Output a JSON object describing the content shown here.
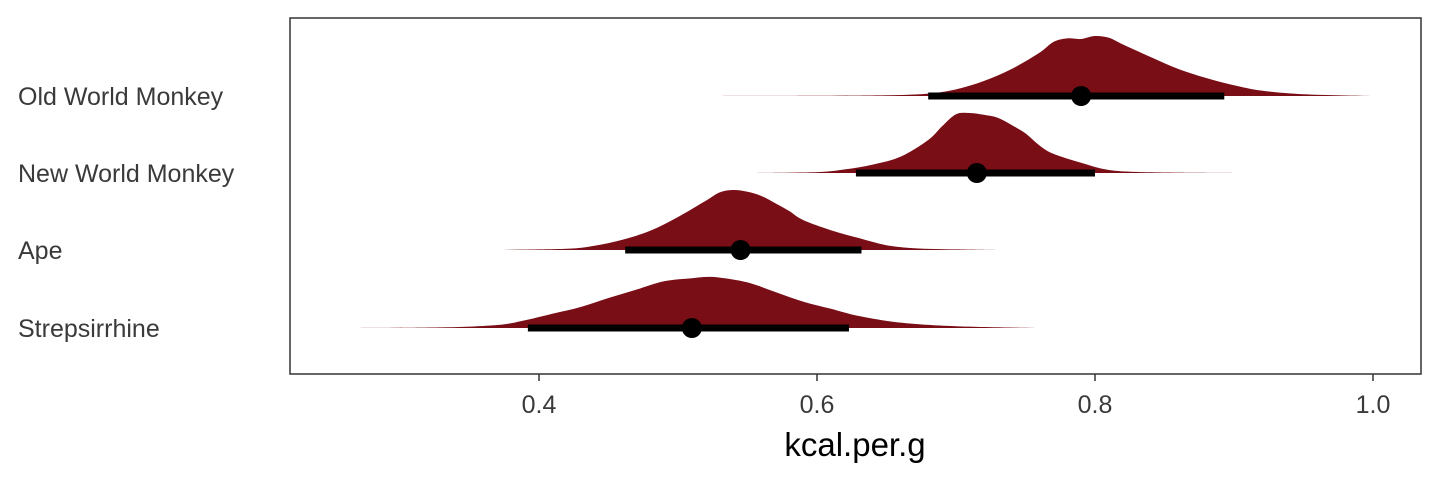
{
  "chart_data": {
    "type": "halfeye",
    "title": "",
    "xlabel": "kcal.per.g",
    "ylabel": "",
    "xlim": [
      0.22,
      1.035
    ],
    "x_ticks": [
      0.4,
      0.6,
      0.8,
      1.0
    ],
    "x_tick_labels": [
      "0.4",
      "0.6",
      "0.8",
      "1.0"
    ],
    "fill_color": "#7a0e17",
    "point_color": "#000000",
    "categories": [
      "Old World Monkey",
      "New World Monkey",
      "Ape",
      "Strepsirrhine"
    ],
    "series": [
      {
        "name": "Old World Monkey",
        "point": 0.79,
        "interval": [
          0.68,
          0.893
        ],
        "density": [
          [
            0.525,
            0
          ],
          [
            0.6,
            0.003
          ],
          [
            0.65,
            0.012
          ],
          [
            0.68,
            0.04
          ],
          [
            0.7,
            0.11
          ],
          [
            0.72,
            0.25
          ],
          [
            0.74,
            0.45
          ],
          [
            0.76,
            0.72
          ],
          [
            0.77,
            0.9
          ],
          [
            0.78,
            0.96
          ],
          [
            0.79,
            0.95
          ],
          [
            0.8,
            1.0
          ],
          [
            0.81,
            0.97
          ],
          [
            0.82,
            0.86
          ],
          [
            0.84,
            0.65
          ],
          [
            0.86,
            0.45
          ],
          [
            0.88,
            0.3
          ],
          [
            0.9,
            0.18
          ],
          [
            0.92,
            0.09
          ],
          [
            0.95,
            0.03
          ],
          [
            1.0,
            0
          ]
        ]
      },
      {
        "name": "New World Monkey",
        "point": 0.715,
        "interval": [
          0.628,
          0.8
        ],
        "density": [
          [
            0.555,
            0
          ],
          [
            0.6,
            0.015
          ],
          [
            0.62,
            0.06
          ],
          [
            0.64,
            0.14
          ],
          [
            0.66,
            0.27
          ],
          [
            0.68,
            0.55
          ],
          [
            0.69,
            0.78
          ],
          [
            0.7,
            0.98
          ],
          [
            0.71,
            1.0
          ],
          [
            0.72,
            0.97
          ],
          [
            0.73,
            0.92
          ],
          [
            0.74,
            0.8
          ],
          [
            0.75,
            0.66
          ],
          [
            0.76,
            0.46
          ],
          [
            0.77,
            0.32
          ],
          [
            0.79,
            0.17
          ],
          [
            0.81,
            0.05
          ],
          [
            0.84,
            0.012
          ],
          [
            0.9,
            0
          ]
        ]
      },
      {
        "name": "Ape",
        "point": 0.545,
        "interval": [
          0.462,
          0.632
        ],
        "density": [
          [
            0.37,
            0
          ],
          [
            0.42,
            0.02
          ],
          [
            0.44,
            0.07
          ],
          [
            0.46,
            0.17
          ],
          [
            0.48,
            0.32
          ],
          [
            0.5,
            0.55
          ],
          [
            0.52,
            0.82
          ],
          [
            0.53,
            0.96
          ],
          [
            0.54,
            1.0
          ],
          [
            0.55,
            0.97
          ],
          [
            0.56,
            0.9
          ],
          [
            0.57,
            0.78
          ],
          [
            0.58,
            0.65
          ],
          [
            0.59,
            0.5
          ],
          [
            0.61,
            0.33
          ],
          [
            0.63,
            0.2
          ],
          [
            0.65,
            0.08
          ],
          [
            0.67,
            0.03
          ],
          [
            0.7,
            0.01
          ],
          [
            0.73,
            0
          ]
        ]
      },
      {
        "name": "Strepsirrhine",
        "point": 0.51,
        "interval": [
          0.392,
          0.623
        ],
        "density": [
          [
            0.26,
            0
          ],
          [
            0.33,
            0.01
          ],
          [
            0.37,
            0.05
          ],
          [
            0.39,
            0.13
          ],
          [
            0.41,
            0.24
          ],
          [
            0.43,
            0.35
          ],
          [
            0.45,
            0.5
          ],
          [
            0.47,
            0.64
          ],
          [
            0.49,
            0.78
          ],
          [
            0.51,
            0.83
          ],
          [
            0.52,
            0.85
          ],
          [
            0.53,
            0.84
          ],
          [
            0.55,
            0.76
          ],
          [
            0.57,
            0.6
          ],
          [
            0.59,
            0.44
          ],
          [
            0.61,
            0.32
          ],
          [
            0.63,
            0.2
          ],
          [
            0.66,
            0.09
          ],
          [
            0.7,
            0.03
          ],
          [
            0.76,
            0
          ]
        ]
      }
    ]
  }
}
